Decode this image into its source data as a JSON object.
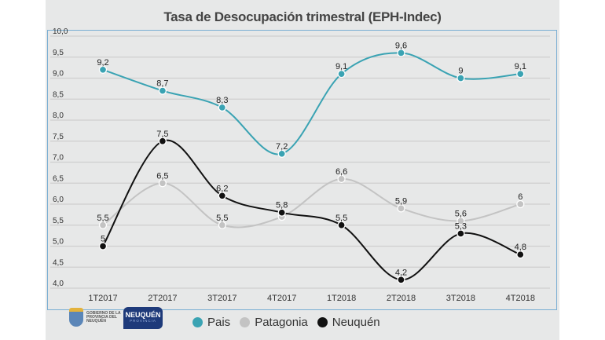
{
  "chart_data": {
    "type": "line",
    "title": "Tasa de Desocupación trimestral (EPH-Indec)",
    "categories": [
      "1T2017",
      "2T2017",
      "3T2017",
      "4T2017",
      "1T2018",
      "2T2018",
      "3T2018",
      "4T2018"
    ],
    "ylim": [
      4.0,
      10.0
    ],
    "yticks": [
      "4,0",
      "4,5",
      "5,0",
      "5,5",
      "6,0",
      "6,5",
      "7,0",
      "7,5",
      "8,0",
      "8,5",
      "9,0",
      "9,5",
      "10,0"
    ],
    "grid": true,
    "legend_position": "bottom",
    "series": [
      {
        "name": "Pais",
        "color": "#3aa3b3",
        "values": [
          9.2,
          8.7,
          8.3,
          7.2,
          9.1,
          9.6,
          9.0,
          9.1
        ],
        "labels": [
          "9,2",
          "8,7",
          "8,3",
          "7,2",
          "9,1",
          "9,6",
          "9",
          "9,1"
        ]
      },
      {
        "name": "Patagonia",
        "color": "#c3c3c3",
        "values": [
          5.5,
          6.5,
          5.5,
          5.7,
          6.6,
          5.9,
          5.6,
          6.0
        ],
        "labels": [
          "5,5",
          "6,5",
          "5,5",
          "",
          "6,6",
          "5,9",
          "5,6",
          "6"
        ]
      },
      {
        "name": "Neuquén",
        "color": "#111111",
        "values": [
          5.0,
          7.5,
          6.2,
          5.8,
          5.5,
          4.2,
          5.3,
          4.8
        ],
        "labels": [
          "5",
          "7,5",
          "6,2",
          "5,8",
          "5,5",
          "4,2",
          "5,3",
          "4,8"
        ]
      }
    ]
  },
  "logos": {
    "gobierno": "GOBIERNO DE LA PROVINCIA DEL NEUQUÉN",
    "neuquen": "NEUQUÉN",
    "provincia": "PROVINCIA"
  }
}
